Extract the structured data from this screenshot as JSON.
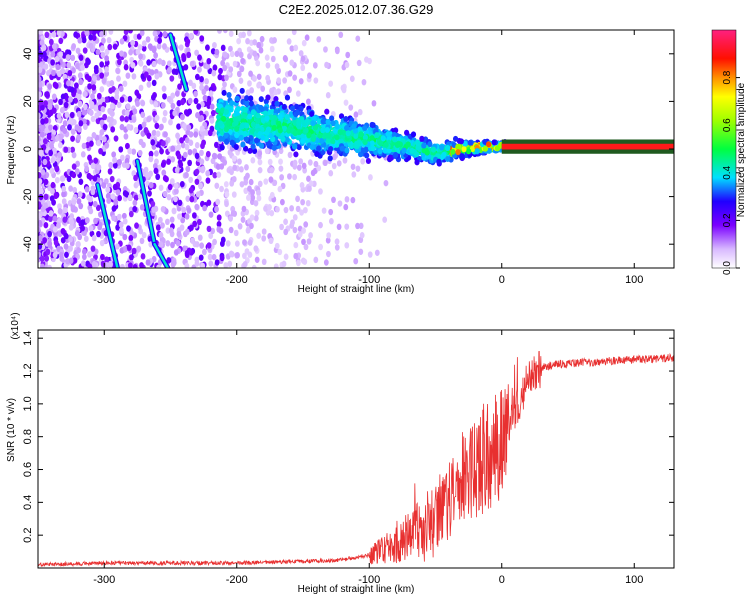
{
  "title": "C2E2.2025.012.07.36.G29",
  "chart_data": [
    {
      "type": "heatmap",
      "xlabel": "Height of straight line (km)",
      "ylabel": "Frequency (Hz)",
      "xlim": [
        -350,
        130
      ],
      "ylim": [
        -50,
        50
      ],
      "xticks": [
        -300,
        -200,
        -100,
        0,
        100
      ],
      "yticks": [
        -40,
        -20,
        0,
        20,
        40
      ],
      "colorbar": {
        "label": "Normalized spectral amplitude",
        "range": [
          0,
          1
        ],
        "ticks": [
          "0.0",
          "0.2",
          "0.4",
          "0.6",
          "0.8"
        ],
        "tick_values": [
          0.0,
          0.2,
          0.4,
          0.6,
          0.8
        ]
      },
      "features": [
        {
          "kind": "ridge",
          "x": [
            -210,
            -170,
            -130,
            -100,
            -70,
            -50,
            -30,
            -10,
            0,
            130
          ],
          "y": [
            12,
            10,
            6,
            4,
            1,
            -2,
            0,
            1,
            1,
            1
          ]
        },
        {
          "kind": "diagonal-streak",
          "x": [
            -305,
            -290
          ],
          "y": [
            -15,
            -50
          ]
        },
        {
          "kind": "diagonal-streak",
          "x": [
            -275,
            -262
          ],
          "y": [
            -5,
            -40
          ]
        },
        {
          "kind": "diagonal-streak",
          "x": [
            -262,
            -252
          ],
          "y": [
            -40,
            -50
          ]
        },
        {
          "kind": "diagonal-streak",
          "x": [
            -250,
            -238
          ],
          "y": [
            48,
            25
          ]
        }
      ]
    },
    {
      "type": "line",
      "xlabel": "Height of straight line (km)",
      "ylabel": "SNR (10 * v/v)",
      "multiplier": "(x10⁴)",
      "xlim": [
        -350,
        130
      ],
      "ylim": [
        0,
        1.45
      ],
      "xticks": [
        -300,
        -200,
        -100,
        0,
        100
      ],
      "yticks": [
        0.2,
        0.4,
        0.6,
        0.8,
        1.0,
        1.2,
        1.4
      ],
      "series": [
        {
          "color": "#e83030",
          "x": [
            -350,
            -300,
            -250,
            -200,
            -150,
            -120,
            -100,
            -80,
            -60,
            -50,
            -40,
            -30,
            -20,
            -10,
            0,
            10,
            20,
            30,
            40,
            60,
            80,
            100,
            130
          ],
          "y": [
            0.02,
            0.03,
            0.03,
            0.03,
            0.04,
            0.05,
            0.08,
            0.14,
            0.25,
            0.32,
            0.42,
            0.52,
            0.6,
            0.68,
            0.78,
            0.95,
            1.15,
            1.22,
            1.24,
            1.25,
            1.26,
            1.27,
            1.28
          ]
        }
      ]
    }
  ]
}
